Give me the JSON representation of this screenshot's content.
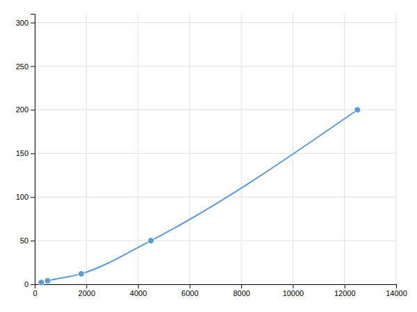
{
  "chart_data": {
    "type": "line",
    "x": [
      250,
      500,
      1800,
      4500,
      12500
    ],
    "values": [
      2,
      4,
      12,
      50,
      200
    ],
    "color": "#5B9BD5",
    "marker": "circle",
    "xlim": [
      0,
      14000
    ],
    "ylim": [
      0,
      310
    ],
    "xticks": [
      0,
      2000,
      4000,
      6000,
      8000,
      10000,
      12000,
      14000
    ],
    "yticks": [
      0,
      50,
      100,
      150,
      200,
      250,
      300
    ],
    "grid": true
  }
}
